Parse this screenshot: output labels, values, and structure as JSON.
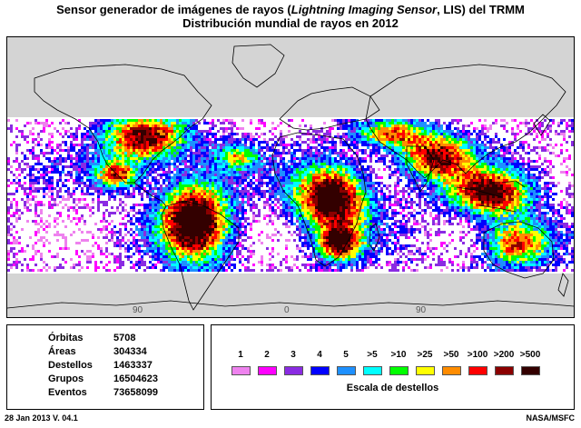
{
  "title": {
    "line1": "Sensor generador de imágenes de rayos (Lightning Imaging Sensor, LIS) del TRMM",
    "line1_prefix": "Sensor generador de imágenes de rayos (",
    "line1_italic": "Lightning Imaging Sensor",
    "line1_suffix": ", LIS) del TRMM",
    "line2": "Distribución mundial de rayos en 2012"
  },
  "map": {
    "longitude_labels": [
      "90",
      "0",
      "90"
    ],
    "coverage_note": "flash density band between approx. 38S and 38N"
  },
  "stats": [
    {
      "label": "Órbitas",
      "value": "5708"
    },
    {
      "label": "Áreas",
      "value": "304334"
    },
    {
      "label": "Destellos",
      "value": "1463337"
    },
    {
      "label": "Grupos",
      "value": "16504623"
    },
    {
      "label": "Eventos",
      "value": "73658099"
    }
  ],
  "scale": {
    "title": "Escala de destellos",
    "entries": [
      {
        "label": "1",
        "color": "#ee82ee"
      },
      {
        "label": "2",
        "color": "#ff00ff"
      },
      {
        "label": "3",
        "color": "#8a2be2"
      },
      {
        "label": "4",
        "color": "#0000ff"
      },
      {
        "label": "5",
        "color": "#1e90ff"
      },
      {
        "label": ">5",
        "color": "#00ffff"
      },
      {
        "label": ">10",
        "color": "#00ff00"
      },
      {
        "label": ">25",
        "color": "#ffff00"
      },
      {
        "label": ">50",
        "color": "#ff8c00"
      },
      {
        "label": ">100",
        "color": "#ff0000"
      },
      {
        "label": ">200",
        "color": "#8b0000"
      },
      {
        "label": ">500",
        "color": "#330000"
      }
    ]
  },
  "footer": {
    "left": "28 Jan 2013 V. 04.1",
    "right": "NASA/MSFC"
  }
}
